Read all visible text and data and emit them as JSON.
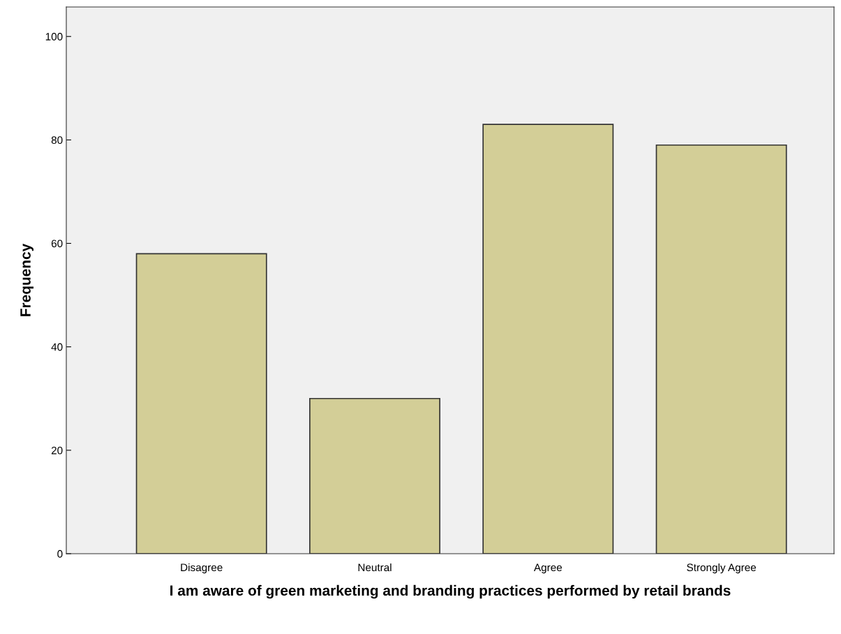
{
  "chart_data": {
    "type": "bar",
    "xlabel": "I am aware of green marketing and branding practices performed by retail brands",
    "ylabel": "Frequency",
    "categories": [
      "Disagree",
      "Neutral",
      "Agree",
      "Strongly Agree"
    ],
    "values": [
      58,
      30,
      83,
      79
    ],
    "color": "#d3ce97",
    "ylim": [
      0,
      105.7
    ],
    "yticks": [
      0,
      20,
      40,
      60,
      80,
      100
    ],
    "grid": false
  }
}
